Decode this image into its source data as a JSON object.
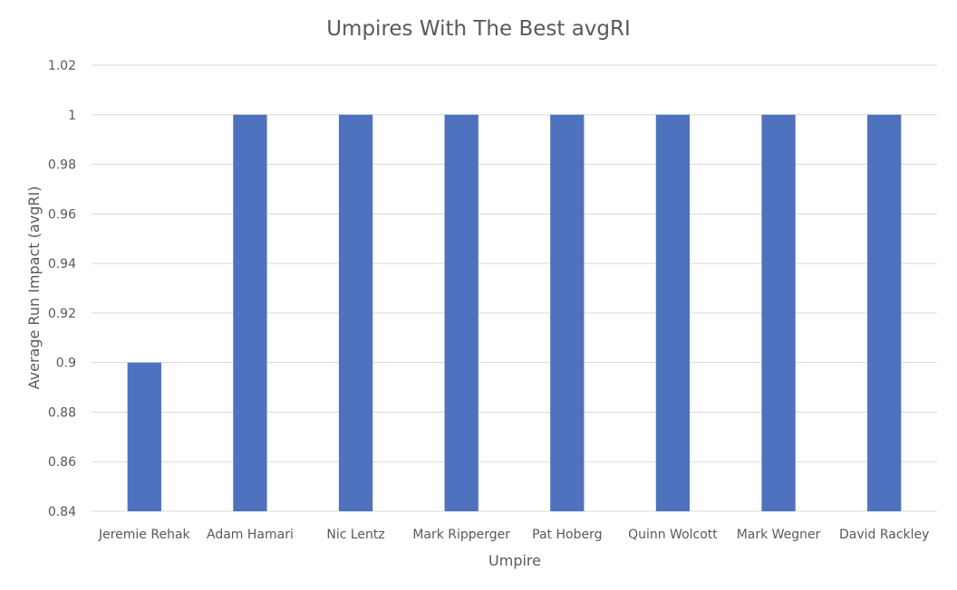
{
  "chart_data": {
    "type": "bar",
    "title": "Umpires With The Best avgRI",
    "xlabel": "Umpire",
    "ylabel": "Average Run Impact (avgRI)",
    "categories": [
      "Jeremie Rehak",
      "Adam Hamari",
      "Nic Lentz",
      "Mark Ripperger",
      "Pat Hoberg",
      "Quinn Wolcott",
      "Mark Wegner",
      "David Rackley"
    ],
    "values": [
      0.9,
      1,
      1,
      1,
      1,
      1,
      1,
      1
    ],
    "ylim": [
      0.84,
      1.02
    ],
    "yticks": [
      "0.84",
      "0.86",
      "0.88",
      "0.9",
      "0.92",
      "0.94",
      "0.96",
      "0.98",
      "1",
      "1.02"
    ],
    "grid": true,
    "legend": "none",
    "bar_color": "#4f72be"
  }
}
